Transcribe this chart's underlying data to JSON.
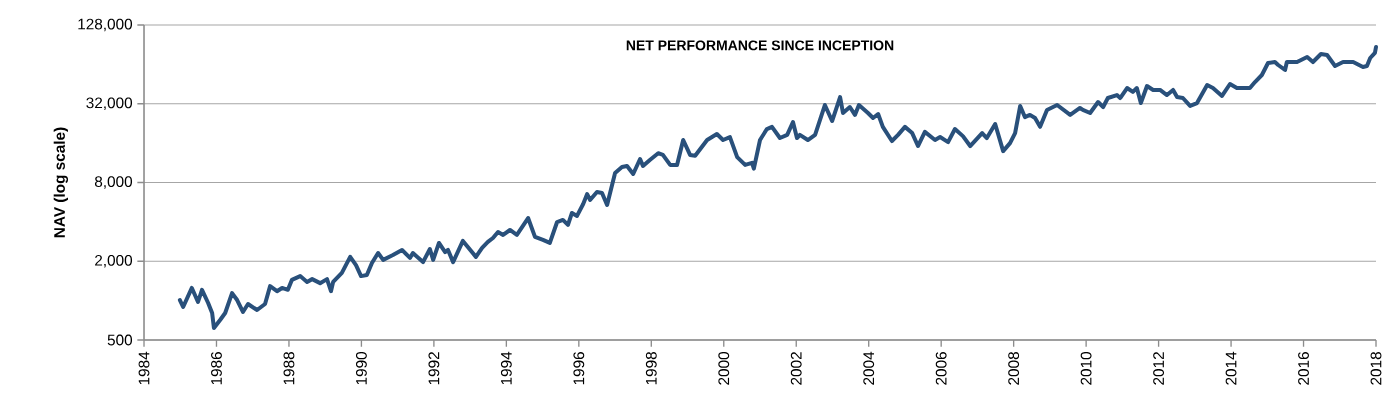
{
  "chart_data": {
    "type": "line",
    "title": "NET PERFORMANCE SINCE INCEPTION",
    "ylabel": "NAV (log scale)",
    "x": [
      1984.99,
      1985.08,
      1985.32,
      1985.49,
      1985.6,
      1985.77,
      1985.88,
      1985.93,
      1986.1,
      1986.24,
      1986.43,
      1986.57,
      1986.73,
      1986.87,
      1987.12,
      1987.34,
      1987.48,
      1987.67,
      1987.81,
      1987.97,
      1988.08,
      1988.31,
      1988.5,
      1988.64,
      1988.86,
      1989.05,
      1989.16,
      1989.22,
      1989.46,
      1989.69,
      1989.85,
      1989.99,
      1990.15,
      1990.29,
      1990.46,
      1990.6,
      1990.87,
      1991.12,
      1991.34,
      1991.42,
      1991.7,
      1991.89,
      1991.98,
      1992.14,
      1992.31,
      1992.39,
      1992.53,
      1992.8,
      1993.16,
      1993.33,
      1993.49,
      1993.63,
      1993.77,
      1993.91,
      1994.1,
      1994.29,
      1994.6,
      1994.79,
      1995.01,
      1995.2,
      1995.4,
      1995.56,
      1995.7,
      1995.81,
      1995.95,
      1996.12,
      1996.23,
      1996.31,
      1996.5,
      1996.64,
      1996.78,
      1997.0,
      1997.19,
      1997.33,
      1997.5,
      1997.69,
      1997.77,
      1997.96,
      1998.19,
      1998.32,
      1998.52,
      1998.71,
      1998.88,
      1999.07,
      1999.21,
      1999.54,
      1999.81,
      1999.98,
      2000.17,
      2000.37,
      2000.59,
      2000.78,
      2000.83,
      2001.0,
      2001.19,
      2001.33,
      2001.55,
      2001.75,
      2001.91,
      2002.02,
      2002.1,
      2002.32,
      2002.52,
      2002.79,
      2002.99,
      2003.21,
      2003.29,
      2003.48,
      2003.62,
      2003.73,
      2003.98,
      2004.12,
      2004.26,
      2004.39,
      2004.64,
      2004.81,
      2005.0,
      2005.2,
      2005.36,
      2005.55,
      2005.83,
      2005.97,
      2006.19,
      2006.38,
      2006.6,
      2006.8,
      2007.13,
      2007.26,
      2007.49,
      2007.71,
      2007.9,
      2008.04,
      2008.18,
      2008.31,
      2008.45,
      2008.59,
      2008.73,
      2008.92,
      2009.2,
      2009.56,
      2009.83,
      2009.91,
      2010.11,
      2010.33,
      2010.47,
      2010.6,
      2010.85,
      2010.94,
      2011.13,
      2011.29,
      2011.4,
      2011.51,
      2011.68,
      2011.85,
      2012.04,
      2012.23,
      2012.4,
      2012.51,
      2012.67,
      2012.87,
      2013.06,
      2013.34,
      2013.5,
      2013.75,
      2013.97,
      2014.16,
      2014.52,
      2014.66,
      2014.85,
      2015.02,
      2015.21,
      2015.3,
      2015.49,
      2015.54,
      2015.82,
      2016.1,
      2016.26,
      2016.48,
      2016.65,
      2016.87,
      2017.09,
      2017.37,
      2017.64,
      2017.75,
      2017.84,
      2017.97,
      2018.0
    ],
    "values": [
      1010,
      894,
      1250,
      976,
      1210,
      959,
      804,
      618,
      711,
      804,
      1140,
      1010,
      819,
      942,
      848,
      942,
      1290,
      1180,
      1250,
      1210,
      1440,
      1540,
      1390,
      1460,
      1360,
      1460,
      1180,
      1390,
      1630,
      2160,
      1870,
      1540,
      1570,
      1940,
      2310,
      2050,
      2230,
      2440,
      2120,
      2310,
      1970,
      2480,
      2050,
      2760,
      2350,
      2440,
      1970,
      2860,
      2160,
      2530,
      2810,
      3010,
      3350,
      3180,
      3470,
      3180,
      4280,
      3070,
      2910,
      2760,
      3990,
      4140,
      3790,
      4680,
      4440,
      5480,
      6530,
      5880,
      6770,
      6650,
      5390,
      9460,
      10500,
      10700,
      9290,
      12100,
      10700,
      11900,
      13400,
      13000,
      10900,
      10900,
      16900,
      13000,
      12800,
      16900,
      18800,
      16900,
      17800,
      12500,
      10900,
      11300,
      10200,
      16900,
      20500,
      21300,
      17500,
      18500,
      23200,
      17500,
      18500,
      16900,
      18500,
      31300,
      23600,
      36000,
      27200,
      30200,
      26300,
      31300,
      27200,
      24900,
      26700,
      21300,
      16600,
      18500,
      21300,
      19100,
      15200,
      19500,
      16900,
      17800,
      16300,
      20500,
      18100,
      15200,
      19100,
      17500,
      22400,
      13900,
      16000,
      19100,
      30800,
      25300,
      26300,
      24900,
      21300,
      28700,
      31300,
      26300,
      29700,
      28700,
      27200,
      33000,
      30200,
      35400,
      37300,
      35400,
      42200,
      39400,
      42200,
      32400,
      43700,
      40800,
      40800,
      37300,
      40800,
      36000,
      35400,
      30800,
      32400,
      44500,
      42200,
      36700,
      45300,
      42200,
      42200,
      46900,
      53100,
      65600,
      66700,
      63300,
      58000,
      66700,
      66700,
      72900,
      66700,
      76800,
      75500,
      62200,
      66700,
      66700,
      61100,
      62200,
      71600,
      78300,
      86900
    ],
    "color": "#29507b",
    "xlim": [
      1984,
      2018
    ],
    "ylim": [
      500,
      128000
    ],
    "xticks": [
      1984,
      1986,
      1988,
      1990,
      1992,
      1994,
      1996,
      1998,
      2000,
      2002,
      2004,
      2006,
      2008,
      2010,
      2012,
      2014,
      2016,
      2018
    ],
    "yticks": [
      {
        "value": 500,
        "label": "500"
      },
      {
        "value": 2000,
        "label": "2,000"
      },
      {
        "value": 8000,
        "label": "8,000"
      },
      {
        "value": 32000,
        "label": "32,000"
      },
      {
        "value": 128000,
        "label": "128,000"
      }
    ],
    "log": "y",
    "grid": "y",
    "marker": "none",
    "line_style": "solid"
  }
}
